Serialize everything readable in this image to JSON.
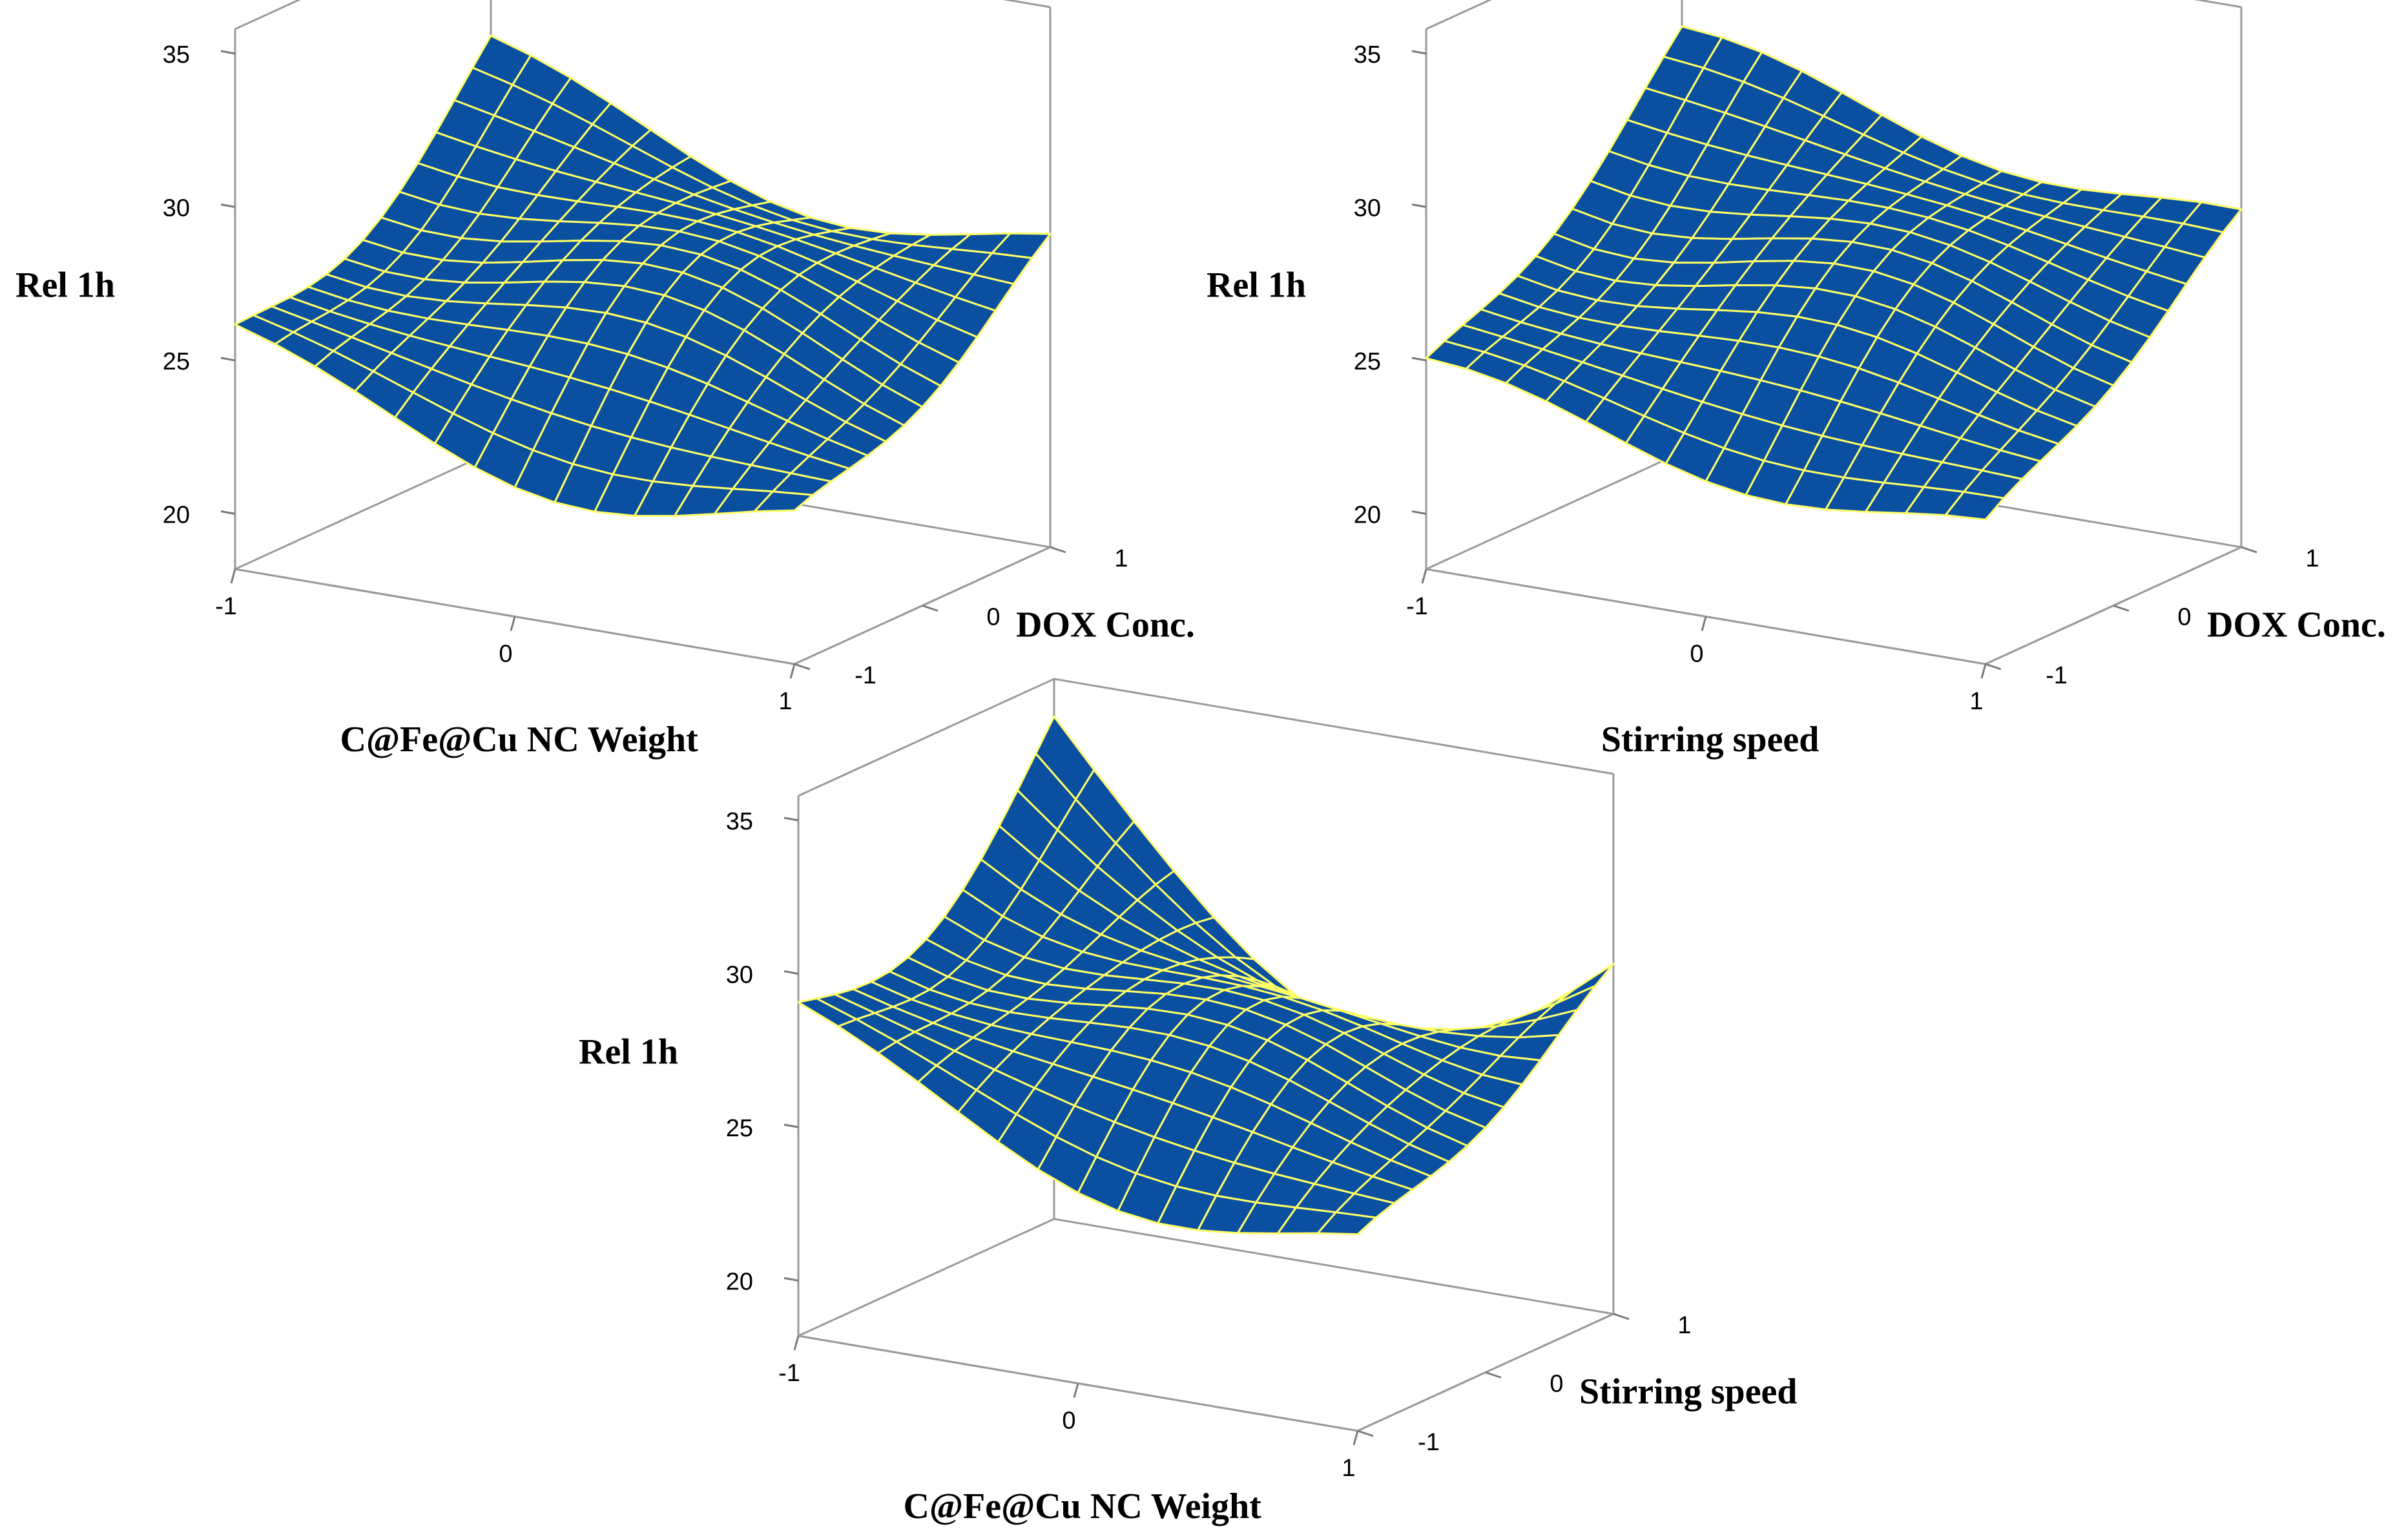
{
  "chart_data": [
    {
      "type": "surface",
      "title": "",
      "zlabel": "Rel 1h",
      "xlabel": "C@Fe@Cu NC Weight",
      "ylabel": "DOX Conc.",
      "x_ticks": [
        "-1",
        "0",
        "1"
      ],
      "y_ticks": [
        "-1",
        "0",
        "1"
      ],
      "z_ticks": [
        "20",
        "25",
        "30",
        "35"
      ],
      "xlim": [
        -1,
        1
      ],
      "ylim": [
        -1,
        1
      ],
      "zlim": [
        18.2,
        35.8
      ],
      "x": [
        -1,
        0,
        1
      ],
      "y": [
        -1,
        0,
        1
      ],
      "z": [
        [
          25.6,
          23.0,
          22.6
        ],
        [
          27.8,
          27.0,
          25.5
        ],
        [
          31.2,
          28.5,
          27.8
        ]
      ],
      "colors": {
        "surface": "#0a4fa0",
        "grid": "#ffff66",
        "frame": "#9a9a9a"
      }
    },
    {
      "type": "surface",
      "title": "",
      "zlabel": "Rel 1h",
      "xlabel": "Stirring speed",
      "ylabel": "DOX Conc.",
      "x_ticks": [
        "-1",
        "0",
        "1"
      ],
      "y_ticks": [
        "-1",
        "0",
        "1"
      ],
      "z_ticks": [
        "20",
        "25",
        "30",
        "35"
      ],
      "xlim": [
        -1,
        1
      ],
      "ylim": [
        -1,
        1
      ],
      "zlim": [
        18.2,
        35.8
      ],
      "x": [
        -1,
        0,
        1
      ],
      "y": [
        -1,
        0,
        1
      ],
      "z": [
        [
          24.5,
          23.2,
          22.3
        ],
        [
          28.0,
          27.0,
          26.2
        ],
        [
          31.5,
          30.0,
          28.6
        ]
      ],
      "colors": {
        "surface": "#0a4fa0",
        "grid": "#ffff66",
        "frame": "#9a9a9a"
      }
    },
    {
      "type": "surface",
      "title": "",
      "zlabel": "Rel 1h",
      "xlabel": "C@Fe@Cu NC Weight",
      "ylabel": "Stirring speed",
      "x_ticks": [
        "-1",
        "0",
        "1"
      ],
      "y_ticks": [
        "-1",
        "0",
        "1"
      ],
      "z_ticks": [
        "20",
        "25",
        "30",
        "35"
      ],
      "xlim": [
        -1,
        1
      ],
      "ylim": [
        -1,
        1
      ],
      "zlim": [
        18.2,
        35.8
      ],
      "x": [
        -1,
        0,
        1
      ],
      "y": [
        -1,
        0,
        1
      ],
      "z": [
        [
          28.5,
          25.0,
          24.0
        ],
        [
          30.0,
          28.0,
          27.0
        ],
        [
          34.0,
          26.8,
          29.0
        ]
      ],
      "colors": {
        "surface": "#0a4fa0",
        "grid": "#ffff66",
        "frame": "#9a9a9a"
      }
    }
  ]
}
